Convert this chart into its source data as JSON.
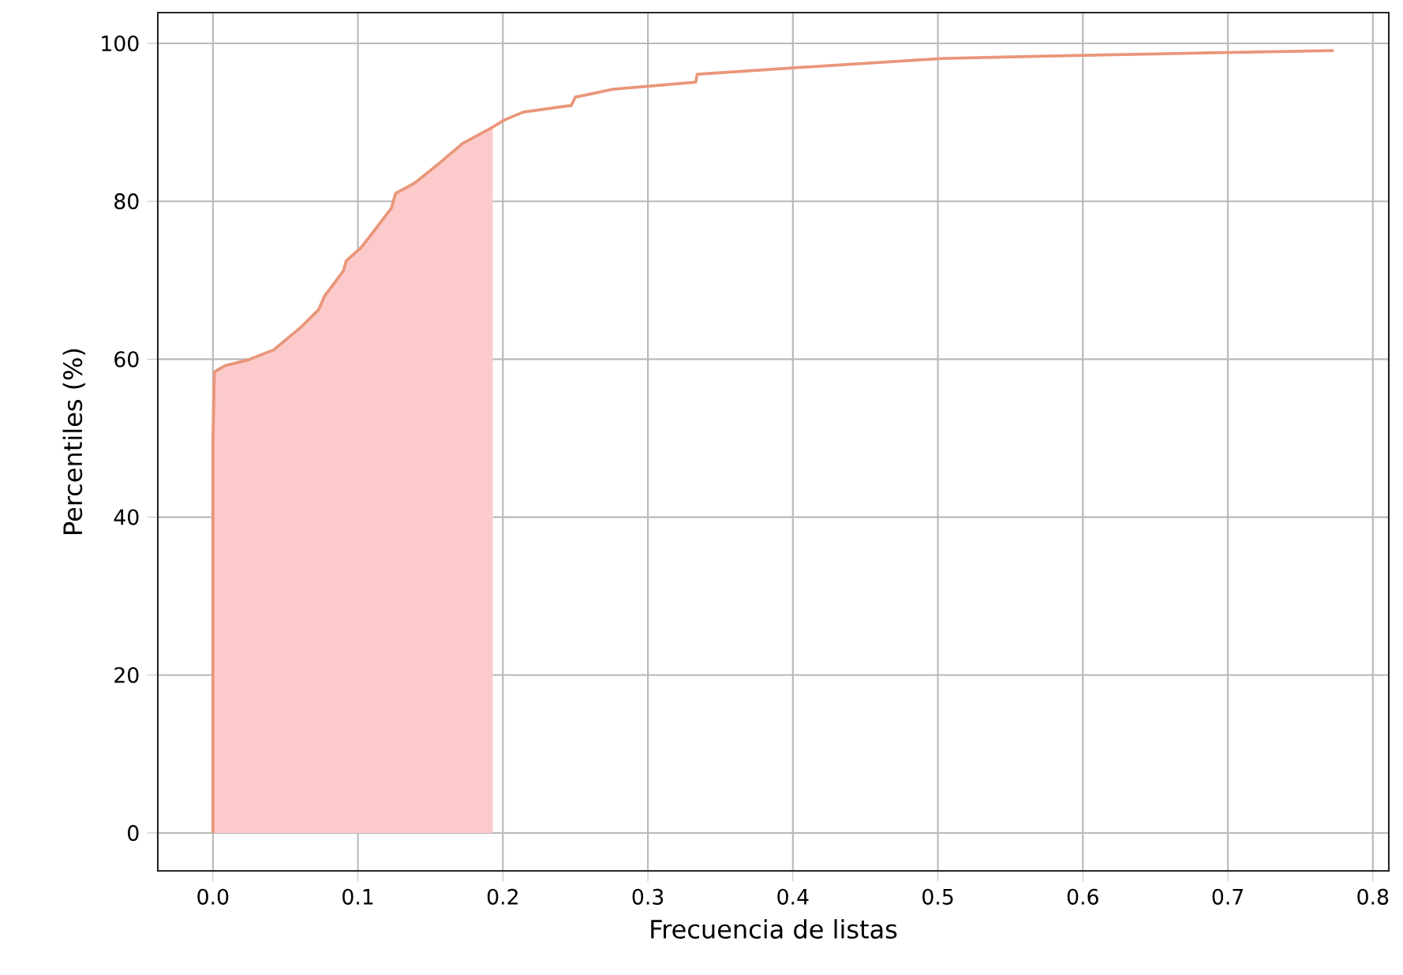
{
  "chart_data": {
    "type": "line",
    "xlabel": "Frecuencia de listas",
    "ylabel": "Percentiles (%)",
    "xlim": [
      -0.038,
      0.811
    ],
    "ylim": [
      -4.8,
      103.9
    ],
    "xticks": [
      {
        "value": 0,
        "label": "0.0"
      },
      0.1,
      0.2,
      0.3,
      0.4,
      0.5,
      0.6,
      0.7,
      0.8
    ],
    "yticks": [
      0,
      20,
      40,
      60,
      80,
      100
    ],
    "grid": true,
    "marker": "none",
    "line_style": "solid",
    "series": [
      {
        "type": "area",
        "color": "#fccaca",
        "x": [
          0,
          0,
          0.001,
          0.0086,
          0.024,
          0.042,
          0.061,
          0.073,
          0.077,
          0.09,
          0.092,
          0.102,
          0.108,
          0.123,
          0.126,
          0.139,
          0.156,
          0.172,
          0.193
        ],
        "values": [
          0,
          49.5,
          58.4,
          59.2,
          59.9,
          61.2,
          64.1,
          66.3,
          68.0,
          71.2,
          72.5,
          74.1,
          75.5,
          79.1,
          81.0,
          82.3,
          84.8,
          87.3,
          89.4
        ]
      },
      {
        "color": "#e9967a",
        "x": [
          0,
          0,
          0.001,
          0.0086,
          0.024,
          0.042,
          0.061,
          0.073,
          0.077,
          0.09,
          0.092,
          0.102,
          0.108,
          0.123,
          0.126,
          0.139,
          0.156,
          0.172,
          0.193,
          0.201,
          0.214,
          0.245,
          0.247,
          0.25,
          0.276,
          0.333,
          0.334,
          0.4,
          0.503,
          0.601,
          0.773
        ],
        "values": [
          0,
          49.5,
          58.4,
          59.2,
          59.9,
          61.2,
          64.1,
          66.3,
          68.0,
          71.2,
          72.5,
          74.1,
          75.5,
          79.1,
          81.0,
          82.3,
          84.8,
          87.3,
          89.4,
          90.3,
          91.3,
          92.1,
          92.1,
          93.2,
          94.2,
          95.1,
          96.1,
          96.9,
          98.1,
          98.5,
          99.1
        ]
      }
    ]
  }
}
